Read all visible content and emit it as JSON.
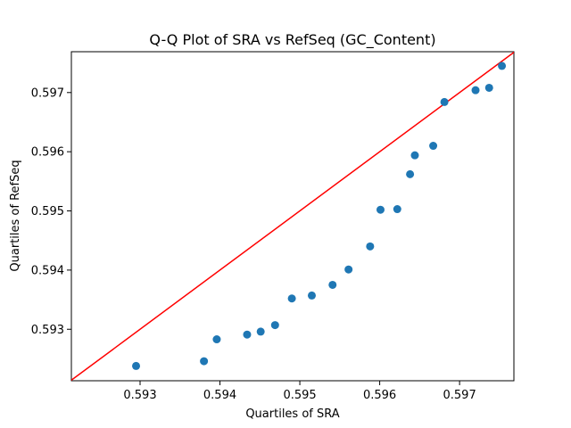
{
  "chart_data": {
    "type": "scatter",
    "title": "Q-Q Plot of SRA vs RefSeq (GC_Content)",
    "xlabel": "Quartiles of SRA",
    "ylabel": "Quartiles of RefSeq",
    "xlim": [
      0.59214,
      0.59768
    ],
    "ylim": [
      0.59213,
      0.59769
    ],
    "xticks": [
      {
        "value": 0.593,
        "label": "0.593"
      },
      {
        "value": 0.594,
        "label": "0.594"
      },
      {
        "value": 0.595,
        "label": "0.595"
      },
      {
        "value": 0.596,
        "label": "0.596"
      },
      {
        "value": 0.597,
        "label": "0.597"
      }
    ],
    "yticks": [
      {
        "value": 0.593,
        "label": "0.593"
      },
      {
        "value": 0.594,
        "label": "0.594"
      },
      {
        "value": 0.595,
        "label": "0.595"
      },
      {
        "value": 0.596,
        "label": "0.596"
      },
      {
        "value": 0.597,
        "label": "0.597"
      }
    ],
    "points": [
      {
        "x": 0.59295,
        "y": 0.59238
      },
      {
        "x": 0.5938,
        "y": 0.59246
      },
      {
        "x": 0.59396,
        "y": 0.59283
      },
      {
        "x": 0.59434,
        "y": 0.59291
      },
      {
        "x": 0.59451,
        "y": 0.59296
      },
      {
        "x": 0.59469,
        "y": 0.59307
      },
      {
        "x": 0.5949,
        "y": 0.59352
      },
      {
        "x": 0.59515,
        "y": 0.59357
      },
      {
        "x": 0.59541,
        "y": 0.59375
      },
      {
        "x": 0.59561,
        "y": 0.59401
      },
      {
        "x": 0.59588,
        "y": 0.5944
      },
      {
        "x": 0.59601,
        "y": 0.59502
      },
      {
        "x": 0.59622,
        "y": 0.59503
      },
      {
        "x": 0.59638,
        "y": 0.59562
      },
      {
        "x": 0.59644,
        "y": 0.59594
      },
      {
        "x": 0.59667,
        "y": 0.5961
      },
      {
        "x": 0.59681,
        "y": 0.59684
      },
      {
        "x": 0.5972,
        "y": 0.59704
      },
      {
        "x": 0.59737,
        "y": 0.59708
      },
      {
        "x": 0.59753,
        "y": 0.59745
      }
    ],
    "reference_line": {
      "type": "y=x"
    },
    "grid": false,
    "colors": {
      "points": "#1f77b4",
      "reference_line": "#ff0000",
      "axes": "#000000"
    }
  }
}
